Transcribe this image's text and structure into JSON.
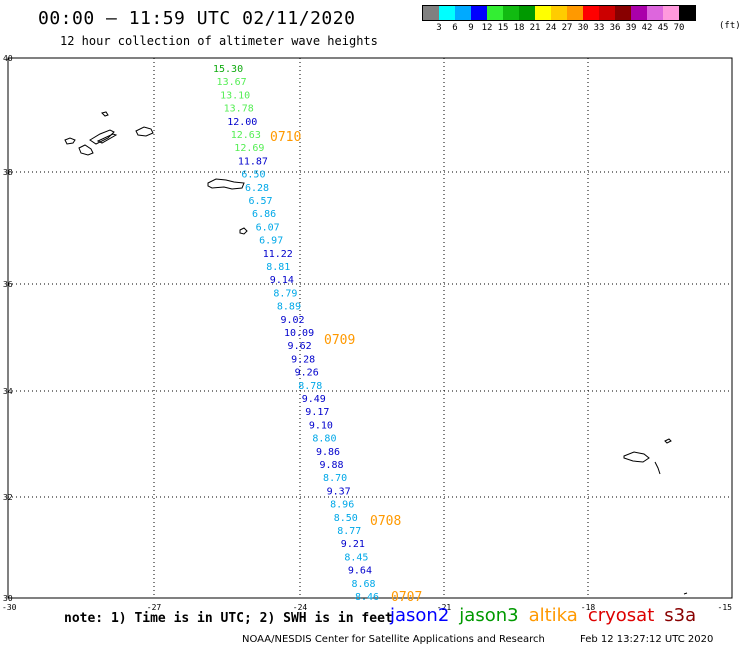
{
  "header": {
    "title": "00:00 – 11:59 UTC 02/11/2020",
    "subtitle": "12 hour collection of altimeter wave heights"
  },
  "legend": {
    "colors": [
      "#808080",
      "#00ffff",
      "#00aaff",
      "#0000ff",
      "#33ee33",
      "#11bb11",
      "#009900",
      "#ffff00",
      "#ffcc00",
      "#ff9900",
      "#ff0000",
      "#cc0000",
      "#880000",
      "#aa00aa",
      "#dd66dd",
      "#ff99dd",
      "#000000"
    ],
    "labels": [
      "3",
      "6",
      "9",
      "12",
      "15",
      "18",
      "21",
      "24",
      "27",
      "30",
      "33",
      "36",
      "39",
      "42",
      "45",
      "70"
    ],
    "unit": "(ft)"
  },
  "axes": {
    "x_ticks": [
      "-30",
      "-27",
      "-24",
      "-21",
      "-18",
      "-15"
    ],
    "y_ticks": [
      "40",
      "38",
      "36",
      "34",
      "32",
      "30"
    ]
  },
  "map_data": {
    "track": [
      {
        "value": "15.30",
        "color": "#11aa11"
      },
      {
        "value": "13.67",
        "color": "#55ee55"
      },
      {
        "value": "13.10",
        "color": "#55ee55"
      },
      {
        "value": "13.78",
        "color": "#55ee55"
      },
      {
        "value": "12.00",
        "color": "#0000cc"
      },
      {
        "value": "12.63",
        "color": "#55ee55"
      },
      {
        "value": "12.69",
        "color": "#55ee55"
      },
      {
        "value": "11.87",
        "color": "#0000cc"
      },
      {
        "value": "6.50",
        "color": "#00a8e8"
      },
      {
        "value": "6.28",
        "color": "#00a8e8"
      },
      {
        "value": "6.57",
        "color": "#00a8e8"
      },
      {
        "value": "6.86",
        "color": "#00a8e8"
      },
      {
        "value": "6.07",
        "color": "#00a8e8"
      },
      {
        "value": "6.97",
        "color": "#00a8e8"
      },
      {
        "value": "11.22",
        "color": "#0000cc"
      },
      {
        "value": "8.81",
        "color": "#00a8e8"
      },
      {
        "value": "9.14",
        "color": "#0000cc"
      },
      {
        "value": "8.79",
        "color": "#00a8e8"
      },
      {
        "value": "8.89",
        "color": "#00a8e8"
      },
      {
        "value": "9.02",
        "color": "#0000cc"
      },
      {
        "value": "10.09",
        "color": "#0000cc"
      },
      {
        "value": "9.62",
        "color": "#0000cc"
      },
      {
        "value": "9.28",
        "color": "#0000cc"
      },
      {
        "value": "9.26",
        "color": "#0000cc"
      },
      {
        "value": "8.78",
        "color": "#00a8e8"
      },
      {
        "value": "9.49",
        "color": "#0000cc"
      },
      {
        "value": "9.17",
        "color": "#0000cc"
      },
      {
        "value": "9.10",
        "color": "#0000cc"
      },
      {
        "value": "8.80",
        "color": "#00a8e8"
      },
      {
        "value": "9.86",
        "color": "#0000cc"
      },
      {
        "value": "9.88",
        "color": "#0000cc"
      },
      {
        "value": "8.70",
        "color": "#00a8e8"
      },
      {
        "value": "9.37",
        "color": "#0000cc"
      },
      {
        "value": "8.96",
        "color": "#00a8e8"
      },
      {
        "value": "8.50",
        "color": "#00a8e8"
      },
      {
        "value": "8.77",
        "color": "#00a8e8"
      },
      {
        "value": "9.21",
        "color": "#0000cc"
      },
      {
        "value": "8.45",
        "color": "#00a8e8"
      },
      {
        "value": "9.64",
        "color": "#0000cc"
      },
      {
        "value": "8.68",
        "color": "#00a8e8"
      },
      {
        "value": "8.46",
        "color": "#00a8e8"
      }
    ],
    "time_labels": [
      "0710",
      "0709",
      "0708",
      "0707"
    ],
    "time_label_color": "#ff9900"
  },
  "footer": {
    "note": "note: 1) Time is in UTC; 2) SWH is in feet",
    "missions": [
      {
        "name": "jason2",
        "color": "#0000ff"
      },
      {
        "name": "jason3",
        "color": "#009900"
      },
      {
        "name": "altika",
        "color": "#ff9900"
      },
      {
        "name": "cryosat",
        "color": "#dd0000"
      },
      {
        "name": "s3a",
        "color": "#880000"
      }
    ],
    "credit": "NOAA/NESDIS Center for Satellite Applications and Research",
    "timestamp": "Feb 12 13:27:12 UTC 2020"
  }
}
